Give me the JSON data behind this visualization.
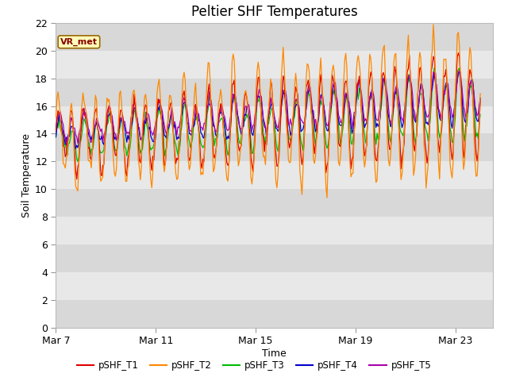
{
  "title": "Peltier SHF Temperatures",
  "xlabel": "Time",
  "ylabel": "Soil Temperature",
  "ylim": [
    0,
    22
  ],
  "yticks": [
    0,
    2,
    4,
    6,
    8,
    10,
    12,
    14,
    16,
    18,
    20,
    22
  ],
  "x_tick_labels": [
    "Mar 7",
    "Mar 11",
    "Mar 15",
    "Mar 19",
    "Mar 23"
  ],
  "x_tick_positions": [
    0,
    4,
    8,
    12,
    16
  ],
  "series_colors": [
    "#dd0000",
    "#ff8800",
    "#00bb00",
    "#0000cc",
    "#aa00aa"
  ],
  "series_labels": [
    "pSHF_T1",
    "pSHF_T2",
    "pSHF_T3",
    "pSHF_T4",
    "pSHF_T5"
  ],
  "legend_label": "VR_met",
  "plot_bg_light": "#e8e8e8",
  "plot_bg_dark": "#d8d8d8",
  "title_fontsize": 12,
  "axis_label_fontsize": 9,
  "tick_fontsize": 9,
  "xlim": [
    0,
    17.5
  ]
}
